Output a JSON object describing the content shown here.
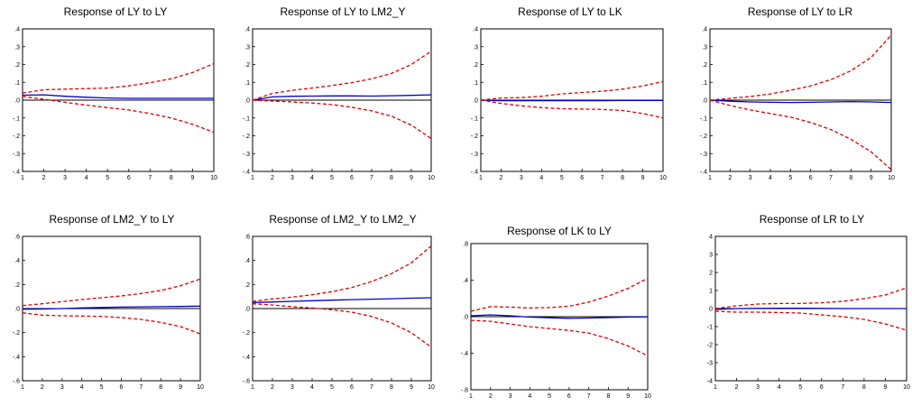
{
  "chart_data": [
    {
      "type": "line",
      "title": "Response of LY to LY",
      "x": [
        1,
        2,
        3,
        4,
        5,
        6,
        7,
        8,
        9,
        10
      ],
      "ylim": [
        -0.4,
        0.4
      ],
      "yticks": [
        ".4",
        ".3",
        ".2",
        ".1",
        ".0",
        "-.1",
        "-.2",
        "-.3",
        "-.4"
      ],
      "ytick_values": [
        0.4,
        0.3,
        0.2,
        0.1,
        0.0,
        -0.1,
        -0.2,
        -0.3,
        -0.4
      ],
      "series": [
        {
          "role": "response",
          "color": "#0000cc",
          "style": "solid",
          "values": [
            0.028,
            0.03,
            0.022,
            0.016,
            0.012,
            0.01,
            0.01,
            0.01,
            0.01,
            0.01
          ]
        },
        {
          "role": "upper",
          "color": "#e00000",
          "style": "dashed",
          "values": [
            0.04,
            0.058,
            0.062,
            0.065,
            0.068,
            0.08,
            0.098,
            0.12,
            0.155,
            0.205
          ]
        },
        {
          "role": "lower",
          "color": "#e00000",
          "style": "dashed",
          "values": [
            0.02,
            0.005,
            -0.012,
            -0.028,
            -0.042,
            -0.055,
            -0.075,
            -0.1,
            -0.135,
            -0.18
          ]
        }
      ]
    },
    {
      "type": "line",
      "title": "Response of LY to LM2_Y",
      "x": [
        1,
        2,
        3,
        4,
        5,
        6,
        7,
        8,
        9,
        10
      ],
      "ylim": [
        -0.4,
        0.4
      ],
      "yticks": [
        ".4",
        ".3",
        ".2",
        ".1",
        ".0",
        "-.1",
        "-.2",
        "-.3",
        "-.4"
      ],
      "ytick_values": [
        0.4,
        0.3,
        0.2,
        0.1,
        0.0,
        -0.1,
        -0.2,
        -0.3,
        -0.4
      ],
      "series": [
        {
          "role": "response",
          "color": "#0000cc",
          "style": "solid",
          "values": [
            0.0,
            0.018,
            0.022,
            0.023,
            0.024,
            0.024,
            0.023,
            0.025,
            0.027,
            0.03
          ]
        },
        {
          "role": "upper",
          "color": "#e00000",
          "style": "dashed",
          "values": [
            0.0,
            0.038,
            0.055,
            0.068,
            0.082,
            0.098,
            0.12,
            0.15,
            0.2,
            0.275
          ]
        },
        {
          "role": "lower",
          "color": "#e00000",
          "style": "dashed",
          "values": [
            0.0,
            -0.005,
            -0.01,
            -0.016,
            -0.025,
            -0.04,
            -0.06,
            -0.09,
            -0.14,
            -0.215
          ]
        }
      ]
    },
    {
      "type": "line",
      "title": "Response of LY to LK",
      "x": [
        1,
        2,
        3,
        4,
        5,
        6,
        7,
        8,
        9,
        10
      ],
      "ylim": [
        -0.4,
        0.4
      ],
      "yticks": [
        ".4",
        ".3",
        ".2",
        ".1",
        ".0",
        "-.1",
        "-.2",
        "-.3",
        "-.4"
      ],
      "ytick_values": [
        0.4,
        0.3,
        0.2,
        0.1,
        0.0,
        -0.1,
        -0.2,
        -0.3,
        -0.4
      ],
      "series": [
        {
          "role": "response",
          "color": "#0000cc",
          "style": "solid",
          "values": [
            0.0,
            -0.003,
            -0.003,
            -0.003,
            -0.003,
            -0.003,
            -0.003,
            -0.002,
            -0.002,
            -0.002
          ]
        },
        {
          "role": "upper",
          "color": "#e00000",
          "style": "dashed",
          "values": [
            0.0,
            0.012,
            0.014,
            0.022,
            0.035,
            0.043,
            0.05,
            0.062,
            0.08,
            0.105
          ]
        },
        {
          "role": "lower",
          "color": "#e00000",
          "style": "dashed",
          "values": [
            0.0,
            -0.018,
            -0.032,
            -0.042,
            -0.048,
            -0.05,
            -0.052,
            -0.058,
            -0.075,
            -0.1
          ]
        }
      ]
    },
    {
      "type": "line",
      "title": "Response of LY to LR",
      "x": [
        1,
        2,
        3,
        4,
        5,
        6,
        7,
        8,
        9,
        10
      ],
      "ylim": [
        -0.4,
        0.4
      ],
      "yticks": [
        ".4",
        ".3",
        ".2",
        ".1",
        ".0",
        "-.1",
        "-.2",
        "-.3",
        "-.4"
      ],
      "ytick_values": [
        0.4,
        0.3,
        0.2,
        0.1,
        0.0,
        -0.1,
        -0.2,
        -0.3,
        -0.4
      ],
      "series": [
        {
          "role": "response",
          "color": "#0000cc",
          "style": "solid",
          "values": [
            0.0,
            -0.006,
            -0.01,
            -0.012,
            -0.013,
            -0.012,
            -0.01,
            -0.008,
            -0.01,
            -0.013
          ]
        },
        {
          "role": "upper",
          "color": "#e00000",
          "style": "dashed",
          "values": [
            0.0,
            0.01,
            0.02,
            0.035,
            0.055,
            0.08,
            0.115,
            0.165,
            0.24,
            0.365
          ]
        },
        {
          "role": "lower",
          "color": "#e00000",
          "style": "dashed",
          "values": [
            0.0,
            -0.03,
            -0.055,
            -0.075,
            -0.095,
            -0.125,
            -0.165,
            -0.22,
            -0.29,
            -0.39
          ]
        }
      ]
    },
    {
      "type": "line",
      "title": "Response of LM2_Y to LY",
      "x": [
        1,
        2,
        3,
        4,
        5,
        6,
        7,
        8,
        9,
        10
      ],
      "ylim": [
        -0.6,
        0.6
      ],
      "yticks": [
        ".6",
        ".4",
        ".2",
        ".0",
        "-.2",
        "-.4",
        "-.6"
      ],
      "ytick_values": [
        0.6,
        0.4,
        0.2,
        0.0,
        -0.2,
        -0.4,
        -0.6
      ],
      "series": [
        {
          "role": "response",
          "color": "#0000cc",
          "style": "solid",
          "values": [
            -0.005,
            -0.004,
            0.0,
            0.005,
            0.009,
            0.012,
            0.014,
            0.016,
            0.017,
            0.02
          ]
        },
        {
          "role": "upper",
          "color": "#e00000",
          "style": "dashed",
          "values": [
            0.025,
            0.04,
            0.058,
            0.075,
            0.09,
            0.105,
            0.125,
            0.15,
            0.19,
            0.245
          ]
        },
        {
          "role": "lower",
          "color": "#e00000",
          "style": "dashed",
          "values": [
            -0.035,
            -0.055,
            -0.06,
            -0.062,
            -0.065,
            -0.075,
            -0.09,
            -0.115,
            -0.15,
            -0.21
          ]
        }
      ]
    },
    {
      "type": "line",
      "title": "Response of LM2_Y to LM2_Y",
      "x": [
        1,
        2,
        3,
        4,
        5,
        6,
        7,
        8,
        9,
        10
      ],
      "ylim": [
        -0.6,
        0.6
      ],
      "yticks": [
        ".6",
        ".4",
        ".2",
        ".0",
        "-.2",
        "-.4",
        "-.6"
      ],
      "ytick_values": [
        0.6,
        0.4,
        0.2,
        0.0,
        -0.2,
        -0.4,
        -0.6
      ],
      "series": [
        {
          "role": "response",
          "color": "#0000cc",
          "style": "solid",
          "values": [
            0.05,
            0.055,
            0.06,
            0.065,
            0.07,
            0.074,
            0.078,
            0.082,
            0.086,
            0.09
          ]
        },
        {
          "role": "upper",
          "color": "#e00000",
          "style": "dashed",
          "values": [
            0.06,
            0.08,
            0.095,
            0.115,
            0.14,
            0.175,
            0.225,
            0.29,
            0.38,
            0.52
          ]
        },
        {
          "role": "lower",
          "color": "#e00000",
          "style": "dashed",
          "values": [
            0.04,
            0.03,
            0.015,
            0.005,
            -0.01,
            -0.03,
            -0.065,
            -0.12,
            -0.2,
            -0.32
          ]
        }
      ]
    },
    {
      "type": "line",
      "title": "Response of LK to LY",
      "x": [
        1,
        2,
        3,
        4,
        5,
        6,
        7,
        8,
        9,
        10
      ],
      "ylim": [
        -0.8,
        0.8
      ],
      "yticks": [
        ".8",
        ".4",
        ".0",
        "-.4",
        "-.8"
      ],
      "ytick_values": [
        0.8,
        0.4,
        0.0,
        -0.4,
        -0.8
      ],
      "series": [
        {
          "role": "response",
          "color": "#0000cc",
          "style": "solid",
          "values": [
            0.01,
            0.02,
            0.01,
            -0.005,
            -0.012,
            -0.018,
            -0.015,
            -0.01,
            -0.005,
            -0.002
          ]
        },
        {
          "role": "upper",
          "color": "#e00000",
          "style": "dashed",
          "values": [
            0.06,
            0.11,
            0.105,
            0.095,
            0.1,
            0.115,
            0.16,
            0.225,
            0.31,
            0.42
          ]
        },
        {
          "role": "lower",
          "color": "#e00000",
          "style": "dashed",
          "values": [
            -0.04,
            -0.05,
            -0.08,
            -0.11,
            -0.13,
            -0.15,
            -0.18,
            -0.24,
            -0.32,
            -0.43
          ]
        }
      ]
    },
    {
      "type": "line",
      "title": "Response of LR to LY",
      "x": [
        1,
        2,
        3,
        4,
        5,
        6,
        7,
        8,
        9,
        10
      ],
      "ylim": [
        -4,
        4
      ],
      "yticks": [
        "4",
        "3",
        "2",
        "1",
        "0",
        "-1",
        "-2",
        "-3",
        "-4"
      ],
      "ytick_values": [
        4,
        3,
        2,
        1,
        0,
        -1,
        -2,
        -3,
        -4
      ],
      "series": [
        {
          "role": "response",
          "color": "#0000cc",
          "style": "solid",
          "values": [
            -0.05,
            0.0,
            0.01,
            0.02,
            0.02,
            0.01,
            0.0,
            0.0,
            0.0,
            0.0
          ]
        },
        {
          "role": "upper",
          "color": "#e00000",
          "style": "dashed",
          "values": [
            0.0,
            0.15,
            0.25,
            0.28,
            0.28,
            0.32,
            0.4,
            0.55,
            0.75,
            1.15
          ]
        },
        {
          "role": "lower",
          "color": "#e00000",
          "style": "dashed",
          "values": [
            -0.15,
            -0.2,
            -0.2,
            -0.22,
            -0.25,
            -0.35,
            -0.45,
            -0.6,
            -0.85,
            -1.2
          ]
        }
      ]
    }
  ]
}
